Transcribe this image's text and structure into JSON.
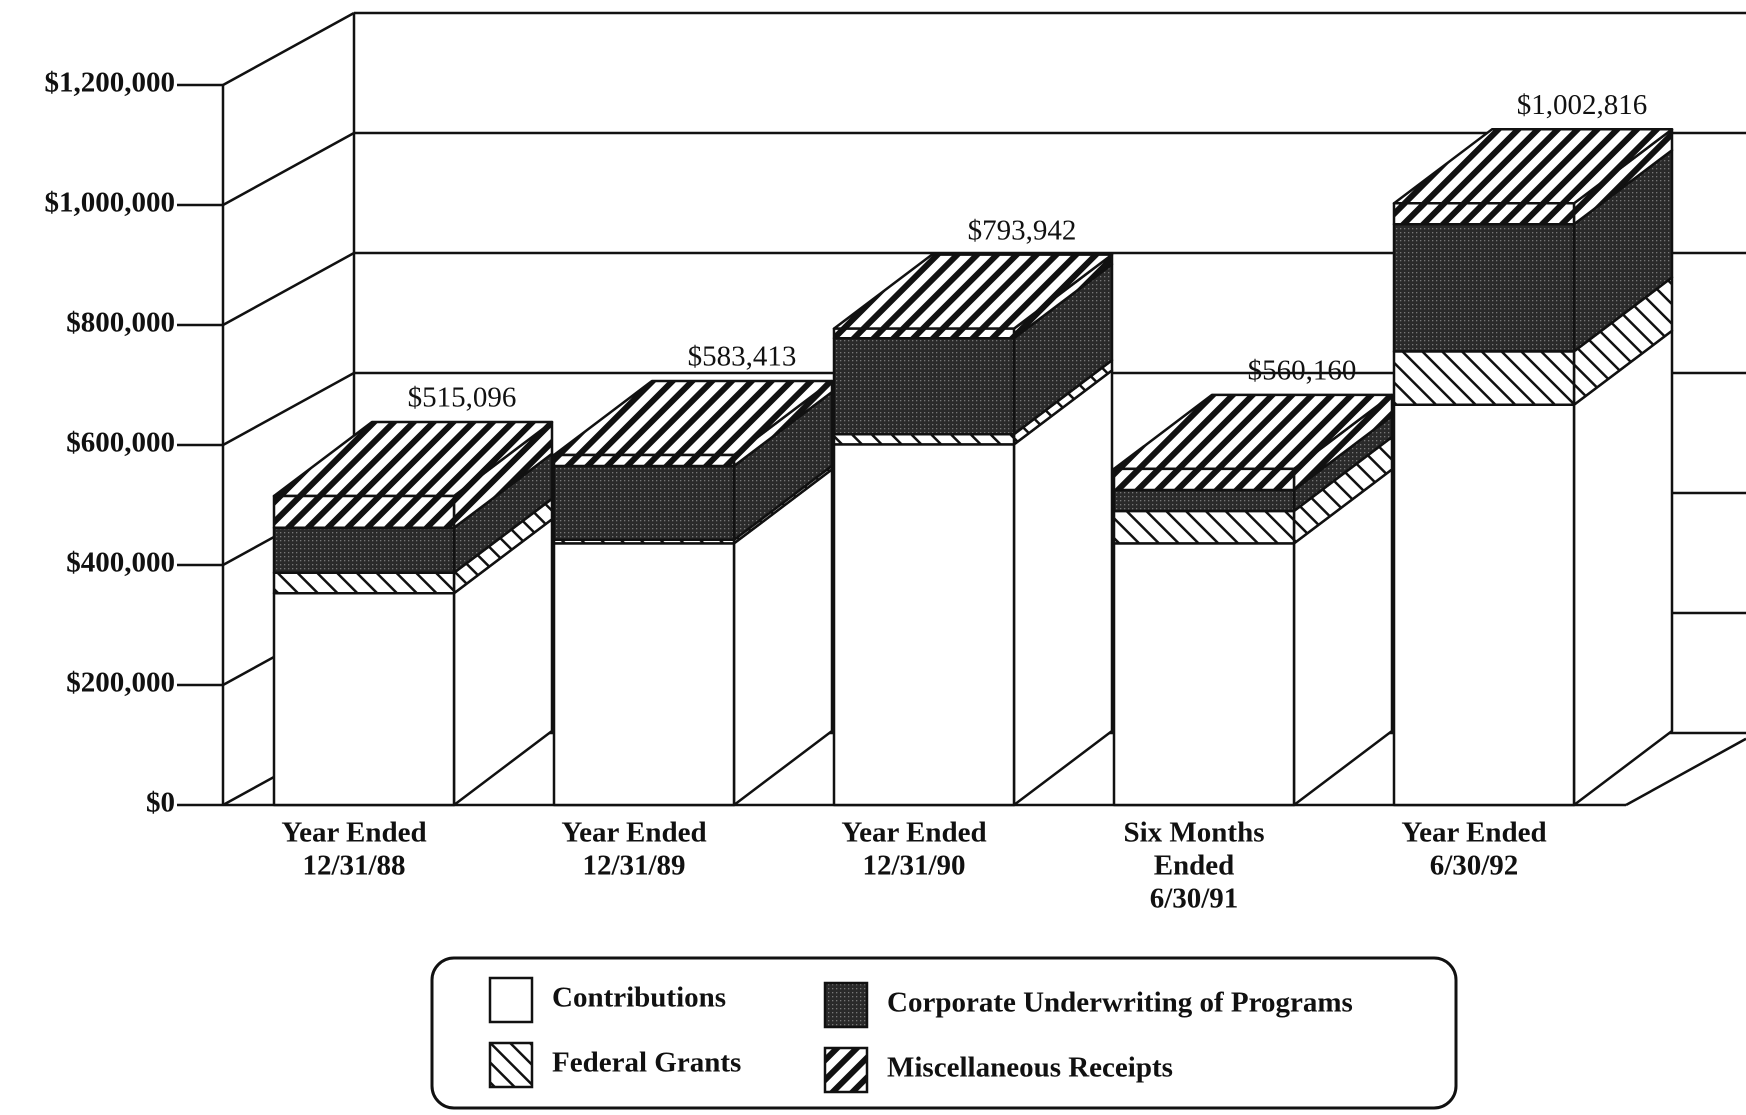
{
  "chart_data": {
    "type": "bar3d_stacked",
    "categories": [
      [
        "Year Ended",
        "12/31/88"
      ],
      [
        "Year Ended",
        "12/31/89"
      ],
      [
        "Year Ended",
        "12/31/90"
      ],
      [
        "Six Months",
        "Ended",
        "6/30/91"
      ],
      [
        "Year Ended",
        "6/30/92"
      ]
    ],
    "series": [
      {
        "name": "Contributions",
        "color": "#ffffff",
        "pattern": "none",
        "values": [
          353000,
          436000,
          601000,
          436000,
          667000
        ]
      },
      {
        "name": "Federal Grants",
        "color": "#ffffff",
        "pattern": "backslash",
        "values": [
          34000,
          6000,
          17000,
          54000,
          89000
        ]
      },
      {
        "name": "Corporate Underwriting of Programs",
        "color": "#2a2a2a",
        "pattern": "dots",
        "values": [
          75000,
          123000,
          160000,
          35000,
          212000
        ]
      },
      {
        "name": "Miscellaneous Receipts",
        "color": "#ffffff",
        "pattern": "slash",
        "values": [
          53096,
          18413,
          15942,
          35160,
          34816
        ]
      }
    ],
    "totals": [
      515096,
      583413,
      793942,
      560160,
      1002816
    ],
    "total_labels": [
      "$515,096",
      "$583,413",
      "$793,942",
      "$560,160",
      "$1,002,816"
    ],
    "ylim": [
      0,
      1200000
    ],
    "yticks": [
      {
        "value": 0,
        "label": "$0"
      },
      {
        "value": 200000,
        "label": "$200,000"
      },
      {
        "value": 400000,
        "label": "$400,000"
      },
      {
        "value": 600000,
        "label": "$600,000"
      },
      {
        "value": 800000,
        "label": "$800,000"
      },
      {
        "value": 1000000,
        "label": "$1,000,000"
      },
      {
        "value": 1200000,
        "label": "$1,200,000"
      }
    ],
    "grid": true
  }
}
